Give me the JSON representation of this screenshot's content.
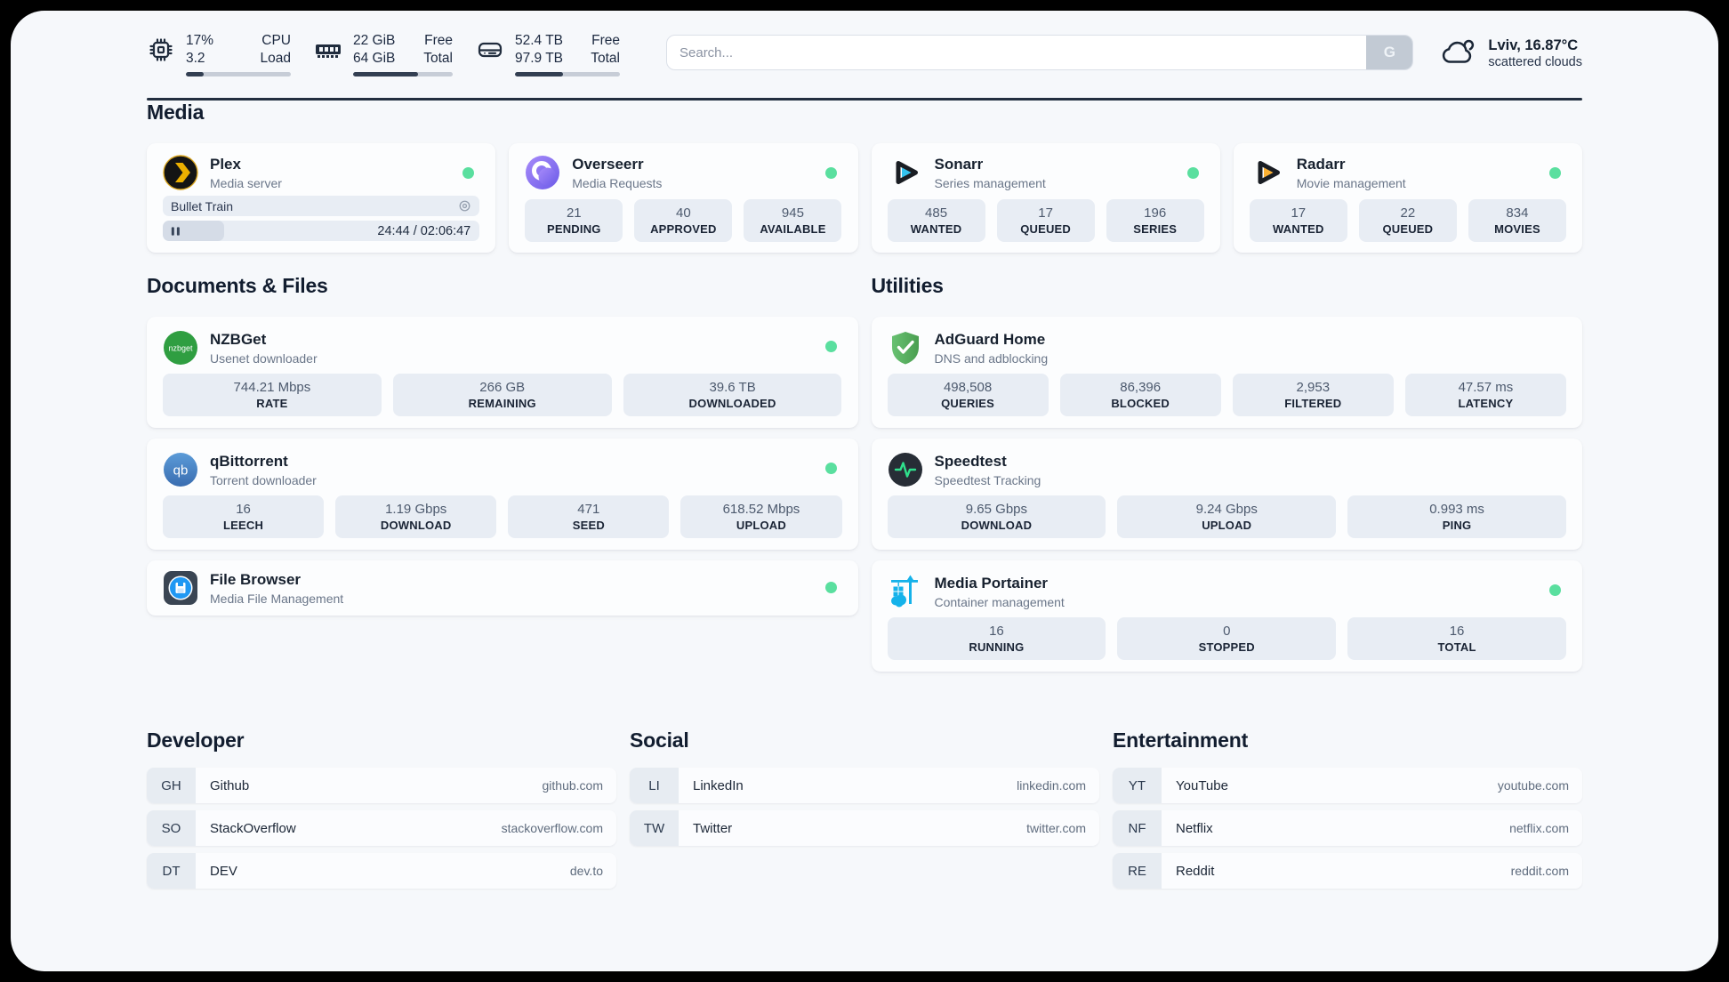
{
  "colors": {
    "status_online": "#5adf9f",
    "accent_navy": "#232f40",
    "page_bg": "#f6f8fb"
  },
  "header": {
    "cpu": {
      "value_line1": "17%",
      "value_line2": "3.2",
      "label_line1": "CPU",
      "label_line2": "Load",
      "progress_pct": 17
    },
    "memory": {
      "value_line1": "22 GiB",
      "value_line2": "64 GiB",
      "label_line1": "Free",
      "label_line2": "Total",
      "progress_pct": 65
    },
    "disk": {
      "value_line1": "52.4 TB",
      "value_line2": "97.9 TB",
      "label_line1": "Free",
      "label_line2": "Total",
      "progress_pct": 46
    },
    "search": {
      "placeholder": "Search...",
      "button_label": "G"
    },
    "weather": {
      "location_temp": "Lviv, 16.87°C",
      "condition": "scattered clouds"
    }
  },
  "media": {
    "title": "Media",
    "apps": [
      {
        "name": "Plex",
        "subtitle": "Media server",
        "icon": "plex-icon",
        "status": "online",
        "player": {
          "title": "Bullet Train",
          "time": "24:44 / 02:06:47",
          "progress_pct": 19.5
        }
      },
      {
        "name": "Overseerr",
        "subtitle": "Media Requests",
        "icon": "overseerr-icon",
        "status": "online",
        "stats": [
          {
            "value": "21",
            "label": "PENDING"
          },
          {
            "value": "40",
            "label": "APPROVED"
          },
          {
            "value": "945",
            "label": "AVAILABLE"
          }
        ]
      },
      {
        "name": "Sonarr",
        "subtitle": "Series management",
        "icon": "sonarr-icon",
        "status": "online",
        "stats": [
          {
            "value": "485",
            "label": "WANTED"
          },
          {
            "value": "17",
            "label": "QUEUED"
          },
          {
            "value": "196",
            "label": "SERIES"
          }
        ]
      },
      {
        "name": "Radarr",
        "subtitle": "Movie management",
        "icon": "radarr-icon",
        "status": "online",
        "stats": [
          {
            "value": "17",
            "label": "WANTED"
          },
          {
            "value": "22",
            "label": "QUEUED"
          },
          {
            "value": "834",
            "label": "MOVIES"
          }
        ]
      }
    ]
  },
  "documents": {
    "title": "Documents & Files",
    "apps": [
      {
        "name": "NZBGet",
        "subtitle": "Usenet downloader",
        "icon": "nzbget-icon",
        "icon_text": "nzbget",
        "status": "online",
        "stats": [
          {
            "value": "744.21 Mbps",
            "label": "RATE"
          },
          {
            "value": "266 GB",
            "label": "REMAINING"
          },
          {
            "value": "39.6 TB",
            "label": "DOWNLOADED"
          }
        ]
      },
      {
        "name": "qBittorrent",
        "subtitle": "Torrent downloader",
        "icon": "qbittorrent-icon",
        "icon_text": "qb",
        "status": "online",
        "stats": [
          {
            "value": "16",
            "label": "LEECH"
          },
          {
            "value": "1.19 Gbps",
            "label": "DOWNLOAD"
          },
          {
            "value": "471",
            "label": "SEED"
          },
          {
            "value": "618.52 Mbps",
            "label": "UPLOAD"
          }
        ]
      },
      {
        "name": "File Browser",
        "subtitle": "Media File Management",
        "icon": "filebrowser-icon",
        "status": "online"
      }
    ]
  },
  "utilities": {
    "title": "Utilities",
    "apps": [
      {
        "name": "AdGuard Home",
        "subtitle": "DNS and adblocking",
        "icon": "adguard-icon",
        "stats": [
          {
            "value": "498,508",
            "label": "QUERIES"
          },
          {
            "value": "86,396",
            "label": "BLOCKED"
          },
          {
            "value": "2,953",
            "label": "FILTERED"
          },
          {
            "value": "47.57 ms",
            "label": "LATENCY"
          }
        ]
      },
      {
        "name": "Speedtest",
        "subtitle": "Speedtest Tracking",
        "icon": "speedtest-icon",
        "stats": [
          {
            "value": "9.65 Gbps",
            "label": "DOWNLOAD"
          },
          {
            "value": "9.24 Gbps",
            "label": "UPLOAD"
          },
          {
            "value": "0.993 ms",
            "label": "PING"
          }
        ]
      },
      {
        "name": "Media Portainer",
        "subtitle": "Container management",
        "icon": "portainer-icon",
        "status": "online",
        "stats": [
          {
            "value": "16",
            "label": "RUNNING"
          },
          {
            "value": "0",
            "label": "STOPPED"
          },
          {
            "value": "16",
            "label": "TOTAL"
          }
        ]
      }
    ]
  },
  "bookmarks": {
    "developer": {
      "title": "Developer",
      "items": [
        {
          "abbr": "GH",
          "name": "Github",
          "url": "github.com"
        },
        {
          "abbr": "SO",
          "name": "StackOverflow",
          "url": "stackoverflow.com"
        },
        {
          "abbr": "DT",
          "name": "DEV",
          "url": "dev.to"
        }
      ]
    },
    "social": {
      "title": "Social",
      "items": [
        {
          "abbr": "LI",
          "name": "LinkedIn",
          "url": "linkedin.com"
        },
        {
          "abbr": "TW",
          "name": "Twitter",
          "url": "twitter.com"
        }
      ]
    },
    "entertainment": {
      "title": "Entertainment",
      "items": [
        {
          "abbr": "YT",
          "name": "YouTube",
          "url": "youtube.com"
        },
        {
          "abbr": "NF",
          "name": "Netflix",
          "url": "netflix.com"
        },
        {
          "abbr": "RE",
          "name": "Reddit",
          "url": "reddit.com"
        }
      ]
    }
  }
}
